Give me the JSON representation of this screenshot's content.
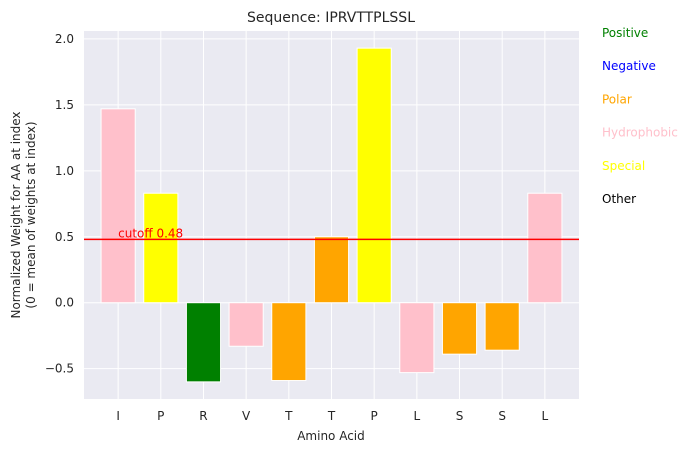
{
  "chart_data": {
    "type": "bar",
    "title": "Sequence: IPRVTTPLSSL",
    "xlabel": "Amino Acid",
    "ylabel_lines": [
      "Normalized Weight for AA at index",
      "(0 = mean of weights at index)"
    ],
    "categories": [
      "I",
      "P",
      "R",
      "V",
      "T",
      "T",
      "P",
      "L",
      "S",
      "S",
      "L"
    ],
    "values": [
      1.47,
      0.83,
      -0.6,
      -0.33,
      -0.59,
      0.5,
      1.93,
      -0.53,
      -0.39,
      -0.36,
      0.83
    ],
    "bar_groups": [
      "Hydrophobic",
      "Special",
      "Positive",
      "Hydrophobic",
      "Polar",
      "Polar",
      "Special",
      "Hydrophobic",
      "Polar",
      "Polar",
      "Hydrophobic"
    ],
    "ylim": [
      -0.73,
      2.06
    ],
    "yticks": [
      -0.5,
      0.0,
      0.5,
      1.0,
      1.5,
      2.0
    ],
    "ytick_labels": [
      "−0.5",
      "0.0",
      "0.5",
      "1.0",
      "1.5",
      "2.0"
    ],
    "cutoff": {
      "value": 0.48,
      "label": "cutoff 0.48",
      "color": "#ff0000"
    },
    "grid": true,
    "legend_position": "right-outside",
    "legend": [
      {
        "name": "Positive",
        "color": "#008000"
      },
      {
        "name": "Negative",
        "color": "#0000ff"
      },
      {
        "name": "Polar",
        "color": "#ffa500"
      },
      {
        "name": "Hydrophobic",
        "color": "#ffc0cb"
      },
      {
        "name": "Special",
        "color": "#ffff00"
      },
      {
        "name": "Other",
        "color": "#000000"
      }
    ]
  }
}
